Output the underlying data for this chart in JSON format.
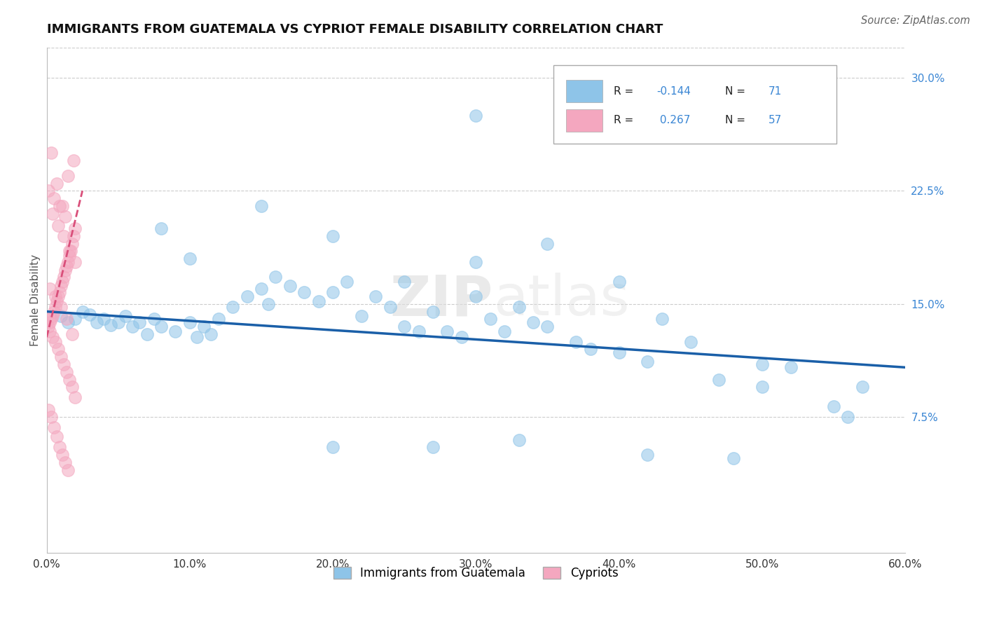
{
  "title": "IMMIGRANTS FROM GUATEMALA VS CYPRIOT FEMALE DISABILITY CORRELATION CHART",
  "source": "Source: ZipAtlas.com",
  "ylabel": "Female Disability",
  "watermark": "ZIPatlas",
  "xlim": [
    0.0,
    0.6
  ],
  "ylim": [
    -0.015,
    0.32
  ],
  "yticks": [
    0.075,
    0.15,
    0.225,
    0.3
  ],
  "ytick_labels": [
    "7.5%",
    "15.0%",
    "22.5%",
    "30.0%"
  ],
  "xticks": [
    0.0,
    0.1,
    0.2,
    0.3,
    0.4,
    0.5,
    0.6
  ],
  "xtick_labels": [
    "0.0%",
    "10.0%",
    "20.0%",
    "30.0%",
    "40.0%",
    "50.0%",
    "60.0%"
  ],
  "color_blue": "#8ec4e8",
  "color_pink": "#f4a7bf",
  "color_blue_line": "#1a5fa8",
  "color_pink_line": "#d94f7a",
  "blue_scatter_x": [
    0.01,
    0.015,
    0.02,
    0.025,
    0.03,
    0.035,
    0.04,
    0.045,
    0.05,
    0.055,
    0.06,
    0.065,
    0.07,
    0.075,
    0.08,
    0.09,
    0.1,
    0.105,
    0.11,
    0.115,
    0.12,
    0.13,
    0.14,
    0.15,
    0.155,
    0.16,
    0.17,
    0.18,
    0.19,
    0.2,
    0.21,
    0.22,
    0.23,
    0.24,
    0.25,
    0.26,
    0.27,
    0.28,
    0.29,
    0.3,
    0.31,
    0.32,
    0.33,
    0.34,
    0.35,
    0.37,
    0.38,
    0.4,
    0.42,
    0.43,
    0.45,
    0.47,
    0.5,
    0.52,
    0.55,
    0.57,
    0.08,
    0.1,
    0.15,
    0.2,
    0.25,
    0.3,
    0.35,
    0.4,
    0.5,
    0.2,
    0.27,
    0.33,
    0.42,
    0.48,
    0.56,
    0.3
  ],
  "blue_scatter_y": [
    0.142,
    0.138,
    0.14,
    0.145,
    0.143,
    0.138,
    0.14,
    0.136,
    0.138,
    0.142,
    0.135,
    0.138,
    0.13,
    0.14,
    0.135,
    0.132,
    0.138,
    0.128,
    0.135,
    0.13,
    0.14,
    0.148,
    0.155,
    0.16,
    0.15,
    0.168,
    0.162,
    0.158,
    0.152,
    0.158,
    0.165,
    0.142,
    0.155,
    0.148,
    0.135,
    0.132,
    0.145,
    0.132,
    0.128,
    0.155,
    0.14,
    0.132,
    0.148,
    0.138,
    0.135,
    0.125,
    0.12,
    0.118,
    0.112,
    0.14,
    0.125,
    0.1,
    0.095,
    0.108,
    0.082,
    0.095,
    0.2,
    0.18,
    0.215,
    0.195,
    0.165,
    0.178,
    0.19,
    0.165,
    0.11,
    0.055,
    0.055,
    0.06,
    0.05,
    0.048,
    0.075,
    0.275
  ],
  "pink_scatter_x": [
    0.001,
    0.002,
    0.003,
    0.004,
    0.005,
    0.006,
    0.007,
    0.008,
    0.009,
    0.01,
    0.011,
    0.012,
    0.013,
    0.014,
    0.015,
    0.016,
    0.017,
    0.018,
    0.019,
    0.02,
    0.002,
    0.004,
    0.006,
    0.008,
    0.01,
    0.012,
    0.014,
    0.016,
    0.018,
    0.02,
    0.003,
    0.007,
    0.011,
    0.015,
    0.019,
    0.001,
    0.003,
    0.005,
    0.007,
    0.009,
    0.011,
    0.013,
    0.015,
    0.002,
    0.006,
    0.01,
    0.014,
    0.018,
    0.004,
    0.008,
    0.012,
    0.016,
    0.02,
    0.001,
    0.005,
    0.009,
    0.013
  ],
  "pink_scatter_y": [
    0.135,
    0.138,
    0.14,
    0.142,
    0.145,
    0.148,
    0.152,
    0.155,
    0.158,
    0.162,
    0.165,
    0.168,
    0.172,
    0.175,
    0.178,
    0.182,
    0.185,
    0.19,
    0.195,
    0.2,
    0.132,
    0.128,
    0.125,
    0.12,
    0.115,
    0.11,
    0.105,
    0.1,
    0.095,
    0.088,
    0.25,
    0.23,
    0.215,
    0.235,
    0.245,
    0.08,
    0.075,
    0.068,
    0.062,
    0.055,
    0.05,
    0.045,
    0.04,
    0.16,
    0.155,
    0.148,
    0.14,
    0.13,
    0.21,
    0.202,
    0.195,
    0.185,
    0.178,
    0.225,
    0.22,
    0.215,
    0.208
  ]
}
